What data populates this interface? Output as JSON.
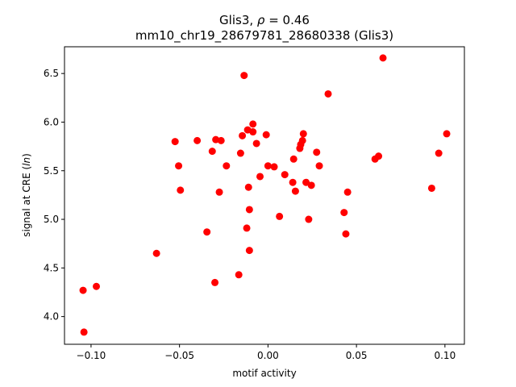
{
  "chart_data": {
    "type": "scatter",
    "title_line1_prefix": "Glis3, ",
    "title_line1_rho": "ρ",
    "title_line1_suffix": " = 0.46",
    "title_line2": "mm10_chr19_28679781_28680338 (Glis3)",
    "xlabel": "motif activity",
    "ylabel_prefix": "signal at CRE (",
    "ylabel_italic": "ln",
    "ylabel_suffix": ")",
    "xlim": [
      -0.115,
      0.111
    ],
    "ylim": [
      3.715,
      6.775
    ],
    "xticks": [
      -0.1,
      -0.05,
      0.0,
      0.05,
      0.1
    ],
    "xtick_labels": [
      "−0.10",
      "−0.05",
      "0.00",
      "0.05",
      "0.10"
    ],
    "yticks": [
      4.0,
      4.5,
      5.0,
      5.5,
      6.0,
      6.5
    ],
    "ytick_labels": [
      "4.0",
      "4.5",
      "5.0",
      "5.5",
      "6.0",
      "6.5"
    ],
    "point_color": "#ff0000",
    "grid": false,
    "points": [
      {
        "x": -0.1045,
        "y": 4.27
      },
      {
        "x": -0.104,
        "y": 3.84
      },
      {
        "x": -0.097,
        "y": 4.31
      },
      {
        "x": -0.063,
        "y": 4.65
      },
      {
        "x": -0.0525,
        "y": 5.8
      },
      {
        "x": -0.0505,
        "y": 5.55
      },
      {
        "x": -0.0495,
        "y": 5.3
      },
      {
        "x": -0.04,
        "y": 5.81
      },
      {
        "x": -0.0345,
        "y": 4.87
      },
      {
        "x": -0.0315,
        "y": 5.7
      },
      {
        "x": -0.03,
        "y": 4.35
      },
      {
        "x": -0.0295,
        "y": 5.82
      },
      {
        "x": -0.0275,
        "y": 5.28
      },
      {
        "x": -0.0265,
        "y": 5.81
      },
      {
        "x": -0.0235,
        "y": 5.55
      },
      {
        "x": -0.0165,
        "y": 4.43
      },
      {
        "x": -0.0155,
        "y": 5.68
      },
      {
        "x": -0.0145,
        "y": 5.86
      },
      {
        "x": -0.0135,
        "y": 6.48
      },
      {
        "x": -0.012,
        "y": 4.91
      },
      {
        "x": -0.0115,
        "y": 5.92
      },
      {
        "x": -0.011,
        "y": 5.33
      },
      {
        "x": -0.0105,
        "y": 5.1
      },
      {
        "x": -0.0105,
        "y": 4.68
      },
      {
        "x": -0.0085,
        "y": 5.98
      },
      {
        "x": -0.0085,
        "y": 5.9
      },
      {
        "x": -0.0065,
        "y": 5.78
      },
      {
        "x": -0.0045,
        "y": 5.44
      },
      {
        "x": -0.001,
        "y": 5.87
      },
      {
        "x": 0.0,
        "y": 5.55
      },
      {
        "x": 0.0035,
        "y": 5.54
      },
      {
        "x": 0.0065,
        "y": 5.03
      },
      {
        "x": 0.0095,
        "y": 5.46
      },
      {
        "x": 0.014,
        "y": 5.38
      },
      {
        "x": 0.0145,
        "y": 5.62
      },
      {
        "x": 0.0155,
        "y": 5.29
      },
      {
        "x": 0.018,
        "y": 5.73
      },
      {
        "x": 0.0185,
        "y": 5.77
      },
      {
        "x": 0.0195,
        "y": 5.81
      },
      {
        "x": 0.02,
        "y": 5.88
      },
      {
        "x": 0.0215,
        "y": 5.38
      },
      {
        "x": 0.023,
        "y": 5.0
      },
      {
        "x": 0.0245,
        "y": 5.35
      },
      {
        "x": 0.0275,
        "y": 5.69
      },
      {
        "x": 0.029,
        "y": 5.55
      },
      {
        "x": 0.034,
        "y": 6.29
      },
      {
        "x": 0.043,
        "y": 5.07
      },
      {
        "x": 0.044,
        "y": 4.85
      },
      {
        "x": 0.045,
        "y": 5.28
      },
      {
        "x": 0.0605,
        "y": 5.62
      },
      {
        "x": 0.0625,
        "y": 5.65
      },
      {
        "x": 0.065,
        "y": 6.66
      },
      {
        "x": 0.0925,
        "y": 5.32
      },
      {
        "x": 0.0965,
        "y": 5.68
      },
      {
        "x": 0.101,
        "y": 5.88
      }
    ]
  }
}
